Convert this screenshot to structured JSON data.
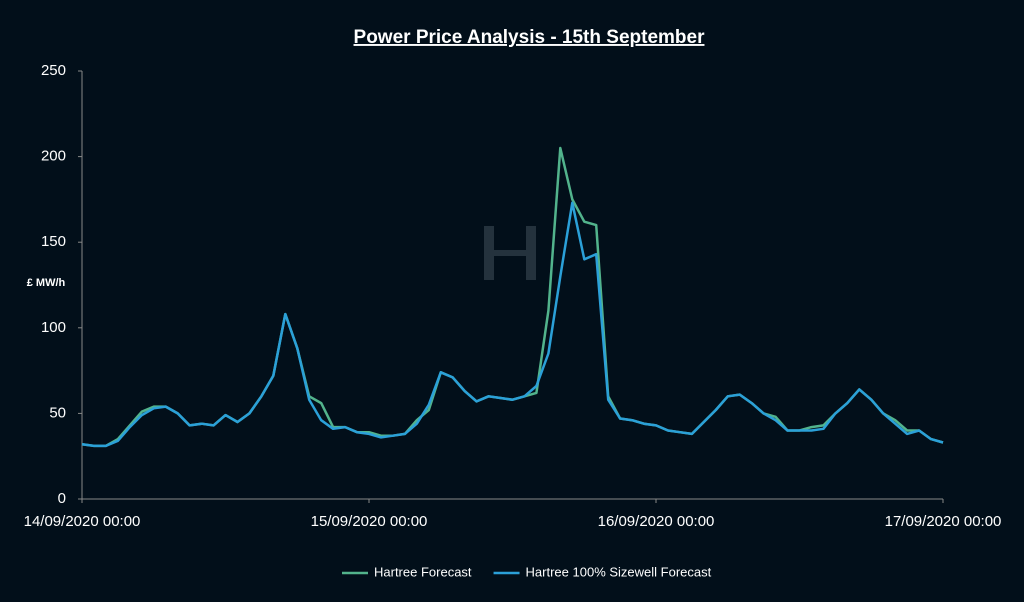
{
  "chart_data": {
    "type": "line",
    "title": "Power Price Analysis - 15th September",
    "y_label": "£ MW/h",
    "x": [
      "14/09/2020 00:00",
      "14/09/2020 01:00",
      "14/09/2020 02:00",
      "14/09/2020 03:00",
      "14/09/2020 04:00",
      "14/09/2020 05:00",
      "14/09/2020 06:00",
      "14/09/2020 07:00",
      "14/09/2020 08:00",
      "14/09/2020 09:00",
      "14/09/2020 10:00",
      "14/09/2020 11:00",
      "14/09/2020 12:00",
      "14/09/2020 13:00",
      "14/09/2020 14:00",
      "14/09/2020 15:00",
      "14/09/2020 16:00",
      "14/09/2020 17:00",
      "14/09/2020 18:00",
      "14/09/2020 19:00",
      "14/09/2020 20:00",
      "14/09/2020 21:00",
      "14/09/2020 22:00",
      "14/09/2020 23:00",
      "15/09/2020 00:00",
      "15/09/2020 01:00",
      "15/09/2020 02:00",
      "15/09/2020 03:00",
      "15/09/2020 04:00",
      "15/09/2020 05:00",
      "15/09/2020 06:00",
      "15/09/2020 07:00",
      "15/09/2020 08:00",
      "15/09/2020 09:00",
      "15/09/2020 10:00",
      "15/09/2020 11:00",
      "15/09/2020 12:00",
      "15/09/2020 13:00",
      "15/09/2020 14:00",
      "15/09/2020 15:00",
      "15/09/2020 16:00",
      "15/09/2020 17:00",
      "15/09/2020 18:00",
      "15/09/2020 19:00",
      "15/09/2020 20:00",
      "15/09/2020 21:00",
      "15/09/2020 22:00",
      "15/09/2020 23:00",
      "16/09/2020 00:00",
      "16/09/2020 01:00",
      "16/09/2020 02:00",
      "16/09/2020 03:00",
      "16/09/2020 04:00",
      "16/09/2020 05:00",
      "16/09/2020 06:00",
      "16/09/2020 07:00",
      "16/09/2020 08:00",
      "16/09/2020 09:00",
      "16/09/2020 10:00",
      "16/09/2020 11:00",
      "16/09/2020 12:00",
      "16/09/2020 13:00",
      "16/09/2020 14:00",
      "16/09/2020 15:00",
      "16/09/2020 16:00",
      "16/09/2020 17:00",
      "16/09/2020 18:00",
      "16/09/2020 19:00",
      "16/09/2020 20:00",
      "16/09/2020 21:00",
      "16/09/2020 22:00",
      "16/09/2020 23:00",
      "17/09/2020 00:00"
    ],
    "series": [
      {
        "name": "Hartree Forecast",
        "color": "#52b38c",
        "values": [
          32,
          31,
          31,
          35,
          43,
          51,
          54,
          54,
          50,
          43,
          44,
          43,
          49,
          45,
          50,
          60,
          72,
          108,
          88,
          60,
          56,
          42,
          42,
          39,
          39,
          37,
          37,
          38,
          46,
          52,
          74,
          71,
          63,
          57,
          60,
          59,
          58,
          60,
          62,
          110,
          205,
          175,
          162,
          160,
          60,
          47,
          46,
          44,
          43,
          40,
          39,
          38,
          45,
          52,
          60,
          61,
          56,
          50,
          48,
          40,
          40,
          42,
          43,
          50,
          56,
          64,
          58,
          50,
          46,
          40,
          40,
          35,
          33
        ]
      },
      {
        "name": "Hartree 100% Sizewell Forecast",
        "color": "#2ba0d8",
        "values": [
          32,
          31,
          31,
          34,
          42,
          49,
          53,
          54,
          50,
          43,
          44,
          43,
          49,
          45,
          50,
          60,
          72,
          108,
          88,
          58,
          46,
          41,
          42,
          39,
          38,
          36,
          37,
          38,
          44,
          55,
          74,
          71,
          63,
          57,
          60,
          59,
          58,
          60,
          66,
          85,
          130,
          173,
          140,
          143,
          58,
          47,
          46,
          44,
          43,
          40,
          39,
          38,
          45,
          52,
          60,
          61,
          56,
          50,
          46,
          40,
          40,
          40,
          41,
          50,
          56,
          64,
          58,
          50,
          44,
          38,
          40,
          35,
          33
        ]
      }
    ],
    "xlim": [
      "14/09/2020 00:00",
      "17/09/2020 00:00"
    ],
    "xticks": [
      "14/09/2020 00:00",
      "15/09/2020 00:00",
      "16/09/2020 00:00",
      "17/09/2020 00:00"
    ],
    "ylim": [
      0,
      250
    ],
    "yticks": [
      0,
      50,
      100,
      150,
      200,
      250
    ],
    "grid": false,
    "legend": "bottom"
  }
}
